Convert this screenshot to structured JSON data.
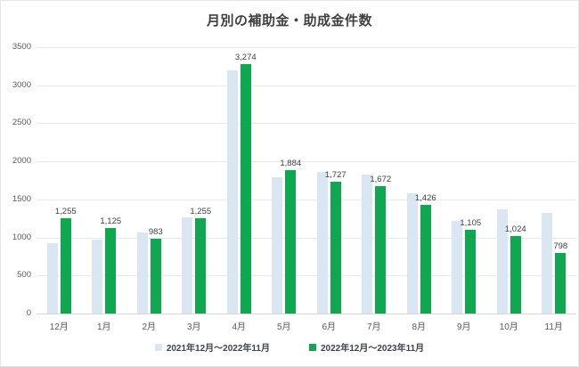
{
  "chart_data": {
    "type": "bar",
    "title": "月別の補助金・助成金件数",
    "categories": [
      "12月",
      "1月",
      "2月",
      "3月",
      "4月",
      "5月",
      "6月",
      "7月",
      "8月",
      "9月",
      "10月",
      "11月"
    ],
    "series": [
      {
        "name": "2021年12月～2022年11月",
        "color": "#dbe6f3",
        "data_labels": false,
        "values": [
          920,
          975,
          1060,
          1260,
          3190,
          1790,
          1860,
          1830,
          1580,
          1220,
          1365,
          1320
        ]
      },
      {
        "name": "2022年12月～2023年11月",
        "color": "#0fa750",
        "data_labels": true,
        "values": [
          1255,
          1125,
          983,
          1255,
          3274,
          1884,
          1727,
          1672,
          1426,
          1105,
          1024,
          798
        ]
      }
    ],
    "xlabel": "",
    "ylabel": "",
    "ylim": [
      0,
      3500
    ],
    "ytick_step": 500,
    "grid": true,
    "legend_position": "bottom"
  },
  "colors": {
    "title_text": "#404040",
    "axis_text": "#595959",
    "gridline": "#e9e9e9",
    "axis_line": "#d6d6d6",
    "data_label_text": "#404040",
    "legend_text": "#3d4152"
  }
}
